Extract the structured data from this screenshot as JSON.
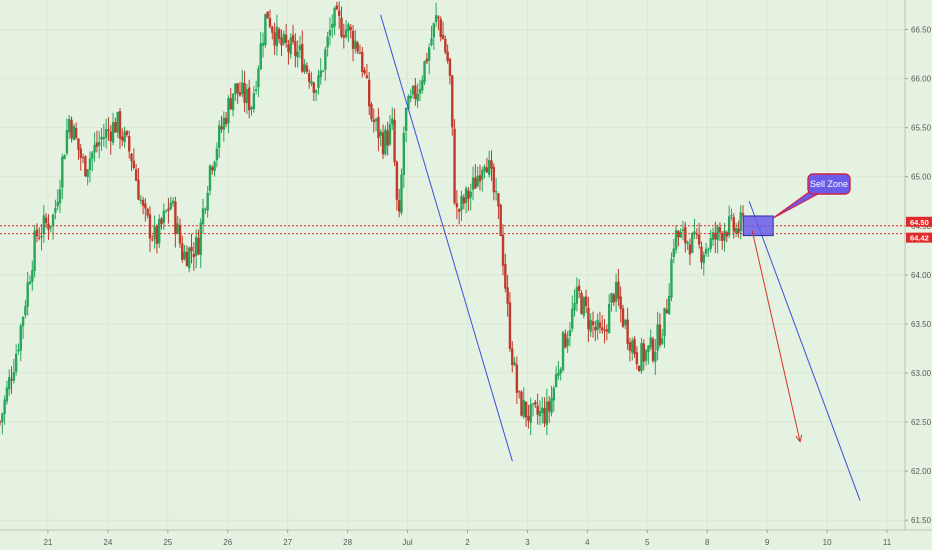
{
  "chart_data": {
    "type": "candlestick",
    "colors": {
      "background": "#e6f2e1",
      "up": "#26a65b",
      "down": "#c0392b",
      "trendline": "#3b4fd8",
      "level": "#e02b2b",
      "sell_zone": "#6a5ce8",
      "arrow": "#d93025"
    },
    "y_axis": {
      "range": [
        61.4,
        66.75
      ],
      "ticks": [
        "61.50",
        "62.00",
        "62.50",
        "63.00",
        "63.50",
        "64.00",
        "64.50",
        "65.00",
        "65.50",
        "66.00",
        "66.50"
      ]
    },
    "x_axis": {
      "ticks": [
        {
          "label": "21",
          "x": 1.0
        },
        {
          "label": "24",
          "x": 2.0
        },
        {
          "label": "25",
          "x": 3.0
        },
        {
          "label": "26",
          "x": 4.0
        },
        {
          "label": "27",
          "x": 5.0
        },
        {
          "label": "28",
          "x": 6.0
        },
        {
          "label": "Jul",
          "x": 7.0
        },
        {
          "label": "2",
          "x": 8.0
        },
        {
          "label": "3",
          "x": 9.0
        },
        {
          "label": "4",
          "x": 10.0
        },
        {
          "label": "5",
          "x": 11.0
        },
        {
          "label": "8",
          "x": 12.0
        },
        {
          "label": "9",
          "x": 13.0
        },
        {
          "label": "10",
          "x": 14.0
        },
        {
          "label": "11",
          "x": 15.0
        }
      ],
      "range": [
        0.2,
        15.3
      ]
    },
    "price_path": [
      [
        0.2,
        62.5
      ],
      [
        0.5,
        63.3
      ],
      [
        0.8,
        64.4
      ],
      [
        1.1,
        64.6
      ],
      [
        1.35,
        65.6
      ],
      [
        1.6,
        65.1
      ],
      [
        1.9,
        65.4
      ],
      [
        2.15,
        65.55
      ],
      [
        2.4,
        65.2
      ],
      [
        2.6,
        64.6
      ],
      [
        2.8,
        64.35
      ],
      [
        3.05,
        64.75
      ],
      [
        3.25,
        64.2
      ],
      [
        3.5,
        64.3
      ],
      [
        3.7,
        65.1
      ],
      [
        3.9,
        65.5
      ],
      [
        4.1,
        65.9
      ],
      [
        4.4,
        65.75
      ],
      [
        4.65,
        66.7
      ],
      [
        4.85,
        66.35
      ],
      [
        5.2,
        66.25
      ],
      [
        5.5,
        65.9
      ],
      [
        5.75,
        66.6
      ],
      [
        6.0,
        66.5
      ],
      [
        6.2,
        66.3
      ],
      [
        6.4,
        65.6
      ],
      [
        6.6,
        65.35
      ],
      [
        6.75,
        65.5
      ],
      [
        6.85,
        64.4
      ],
      [
        6.95,
        65.6
      ],
      [
        7.2,
        65.95
      ],
      [
        7.5,
        66.65
      ],
      [
        7.7,
        66.1
      ],
      [
        7.8,
        64.6
      ],
      [
        8.1,
        64.9
      ],
      [
        8.3,
        65.25
      ],
      [
        8.55,
        64.5
      ],
      [
        8.7,
        63.4
      ],
      [
        8.85,
        62.7
      ],
      [
        9.05,
        62.55
      ],
      [
        9.35,
        62.6
      ],
      [
        9.6,
        63.3
      ],
      [
        9.85,
        63.8
      ],
      [
        10.05,
        63.5
      ],
      [
        10.25,
        63.35
      ],
      [
        10.45,
        63.85
      ],
      [
        10.65,
        63.45
      ],
      [
        10.85,
        63.15
      ],
      [
        11.1,
        63.25
      ],
      [
        11.3,
        63.55
      ],
      [
        11.45,
        64.4
      ],
      [
        11.7,
        64.35
      ],
      [
        11.9,
        64.25
      ],
      [
        12.1,
        64.35
      ],
      [
        12.3,
        64.5
      ],
      [
        12.5,
        64.45
      ],
      [
        12.62,
        64.55
      ]
    ],
    "levels": [
      {
        "name": "resistance-upper",
        "value": 64.5,
        "label": "64.50"
      },
      {
        "name": "resistance-lower",
        "value": 64.42,
        "label": "64.42"
      }
    ],
    "trendlines": [
      {
        "name": "trendline-left",
        "from": [
          6.55,
          66.65
        ],
        "to": [
          8.75,
          62.1
        ]
      },
      {
        "name": "trendline-right",
        "from": [
          12.7,
          64.75
        ],
        "to": [
          14.55,
          61.7
        ]
      }
    ],
    "sell_zone": {
      "x": [
        12.6,
        13.1
      ],
      "y": [
        64.4,
        64.6
      ],
      "label": "Sell Zone"
    },
    "forecast_arrow": {
      "from": [
        12.75,
        64.45
      ],
      "to": [
        13.55,
        62.3
      ]
    }
  }
}
